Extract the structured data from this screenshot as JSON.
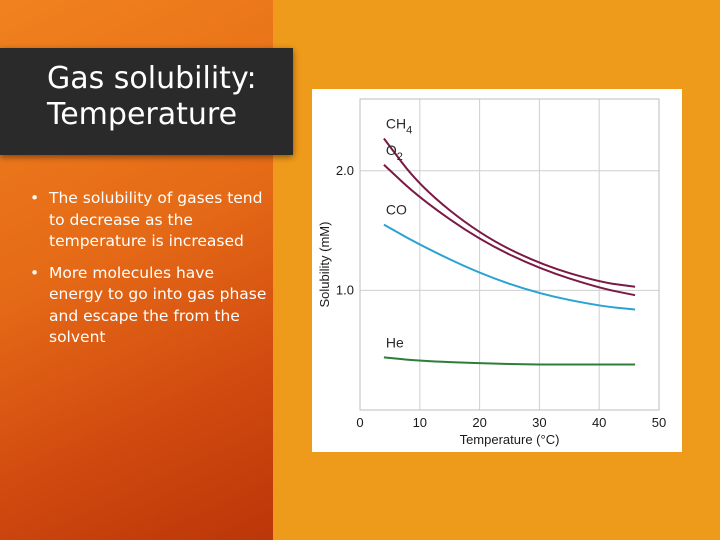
{
  "slide": {
    "title_lines": [
      "Gas solubility:",
      "Temperature"
    ],
    "bullets": [
      "The solubility of gases tend to decrease as the temperature is increased",
      "More molecules have energy to go into gas phase and escape the from the solvent"
    ],
    "bullet_glyph": "•",
    "colors": {
      "background": "#ee9a1a",
      "title_box": "#2a2a2a",
      "title_text": "#ffffff",
      "bullet_text": "#ffffff"
    }
  },
  "chart_data": {
    "type": "line",
    "title": "",
    "xlabel": "Temperature (°C)",
    "ylabel": "Solubility (mM)",
    "xlim": [
      0,
      50
    ],
    "ylim": [
      0,
      2.6
    ],
    "xticks": [
      0,
      10,
      20,
      30,
      40,
      50
    ],
    "yticks": [
      1.0,
      2.0
    ],
    "ytick_labels": [
      "1.0",
      "2.0"
    ],
    "grid": true,
    "legend": "none (inline labels at curve start)",
    "series": [
      {
        "name": "CH4",
        "label_main": "CH",
        "label_sub": "4",
        "color": "#7a1a46",
        "x": [
          4,
          10,
          20,
          30,
          40,
          46
        ],
        "y": [
          2.27,
          1.87,
          1.47,
          1.22,
          1.07,
          1.03
        ]
      },
      {
        "name": "O2",
        "label_main": "O",
        "label_sub": "2",
        "color": "#7a1a46",
        "x": [
          4,
          10,
          20,
          30,
          40,
          46
        ],
        "y": [
          2.05,
          1.77,
          1.42,
          1.18,
          1.02,
          0.96
        ]
      },
      {
        "name": "CO",
        "label_main": "CO",
        "label_sub": "",
        "color": "#2aa3d2",
        "x": [
          4,
          10,
          20,
          30,
          40,
          46
        ],
        "y": [
          1.55,
          1.38,
          1.14,
          0.97,
          0.87,
          0.84
        ]
      },
      {
        "name": "He",
        "label_main": "He",
        "label_sub": "",
        "color": "#2e7d3a",
        "x": [
          4,
          10,
          20,
          30,
          40,
          46
        ],
        "y": [
          0.44,
          0.41,
          0.39,
          0.38,
          0.38,
          0.38
        ]
      }
    ]
  }
}
